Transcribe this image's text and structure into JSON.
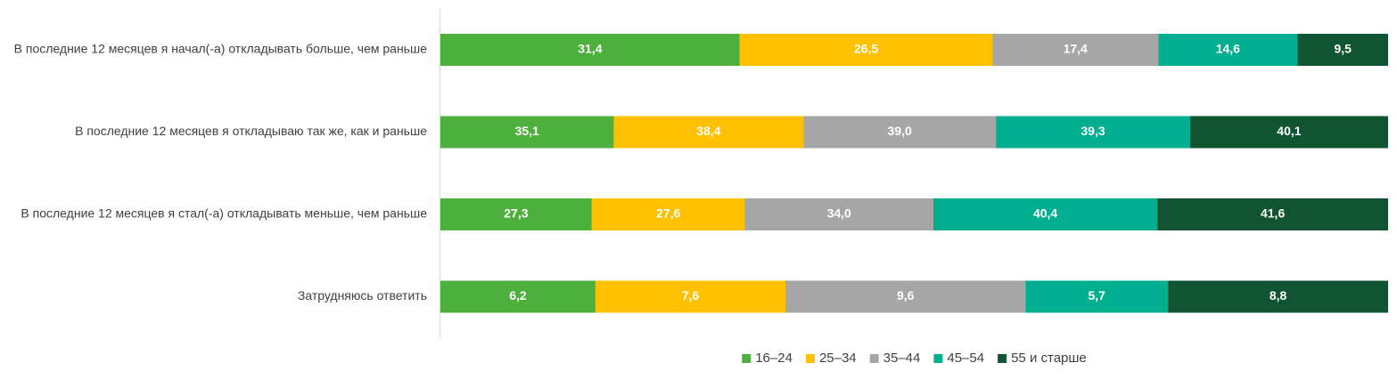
{
  "chart_data": {
    "type": "bar",
    "orientation": "horizontal",
    "stacked": true,
    "percent_stacked": true,
    "grid": false,
    "legend_position": "bottom",
    "title": "",
    "xlabel": "",
    "ylabel": "",
    "categories": [
      "В последние 12 месяцев я начал(-а) откладывать больше, чем раньше",
      "В последние 12 месяцев я откладываю так же, как и раньше",
      "В последние 12 месяцев я стал(-а) откладывать меньше, чем раньше",
      "Затрудняюсь ответить"
    ],
    "series": [
      {
        "name": "16–24",
        "color": "#4DAF3C",
        "values": [
          31.4,
          35.1,
          27.3,
          6.2
        ],
        "labels": [
          "31,4",
          "35,1",
          "27,3",
          "6,2"
        ]
      },
      {
        "name": "25–34",
        "color": "#FFC000",
        "values": [
          26.5,
          38.4,
          27.6,
          7.6
        ],
        "labels": [
          "26,5",
          "38,4",
          "27,6",
          "7,6"
        ]
      },
      {
        "name": "35–44",
        "color": "#A6A6A6",
        "values": [
          17.4,
          39.0,
          34.0,
          9.6
        ],
        "labels": [
          "17,4",
          "39,0",
          "34,0",
          "9,6"
        ]
      },
      {
        "name": "45–54",
        "color": "#00AE90",
        "values": [
          14.6,
          39.3,
          40.4,
          5.7
        ],
        "labels": [
          "14,6",
          "39,3",
          "40,4",
          "5,7"
        ]
      },
      {
        "name": "55 и старше",
        "color": "#115432",
        "values": [
          9.5,
          40.1,
          41.6,
          8.8
        ],
        "labels": [
          "9,5",
          "40,1",
          "41,6",
          "8,8"
        ]
      }
    ]
  }
}
